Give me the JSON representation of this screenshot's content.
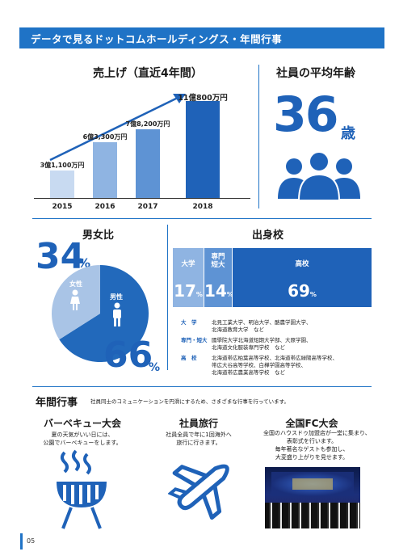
{
  "header": {
    "title": "データで見るドットコムホールディングス・年間行事"
  },
  "sales": {
    "title": "売上げ（直近4年間）",
    "bars": [
      {
        "year": "2015",
        "label": "3億1,100万円",
        "value": 3.11
      },
      {
        "year": "2016",
        "label": "6億3,300万円",
        "value": 6.33
      },
      {
        "year": "2017",
        "label": "7億8,200万円",
        "value": 7.82
      },
      {
        "year": "2018",
        "label": "11億800万円",
        "value": 11.08
      }
    ]
  },
  "age": {
    "title": "社員の平均年齢",
    "value": "36",
    "unit": "歳"
  },
  "gender": {
    "title": "男女比",
    "female_pct": "34",
    "male_pct": "66",
    "pct_sign": "%",
    "female_label": "女性",
    "male_label": "男性",
    "female_fraction": 0.34,
    "colors": {
      "female": "#a9c4e6",
      "male": "#2269bb"
    }
  },
  "school": {
    "title": "出身校",
    "columns": [
      {
        "name": "大学",
        "pct": "17",
        "sign": "%"
      },
      {
        "name": "専門\n短大",
        "pct": "14",
        "sign": "%"
      },
      {
        "name": "高校",
        "pct": "69",
        "sign": "%"
      }
    ],
    "details": [
      {
        "key": "大　学",
        "lines": [
          "北見工業大学、明治大学、酪農学園大学、",
          "北海道教育大学　など"
        ]
      },
      {
        "key": "専門・短大",
        "lines": [
          "國學院大学北海道短期大学部、大原学園、",
          "北海道文化服装専門学校　など"
        ]
      },
      {
        "key": "高　校",
        "lines": [
          "北海道帯広柏葉高等学校、北海道帯広緑陽高等学校、",
          "帯広大谷高等学校、白樺学園高等学校、",
          "北海道帯広農業高等学校　など"
        ]
      }
    ]
  },
  "events": {
    "title": "年間行事",
    "subtitle": "社員同士のコミュニケーションを円滑にするため、さまざまな行事を行っています。",
    "items": [
      {
        "name": "バーベキュー大会",
        "desc": [
          "夏の天気がいい日には、",
          "公園でバーベキューをします。"
        ],
        "icon": "bbq-grill-icon"
      },
      {
        "name": "社員旅行",
        "desc": [
          "社員全員で年に1回海外へ",
          "旅行に行きます。"
        ],
        "icon": "airplane-icon"
      },
      {
        "name": "全国FC大会",
        "desc": [
          "全国のハウスドゥ加盟店が一堂に集まり、",
          "表彰式を行います。",
          "毎年著名なゲストも参加し、",
          "大変盛り上がりを見せます。"
        ],
        "icon": "event-photo"
      }
    ]
  },
  "page": {
    "number": "05"
  }
}
